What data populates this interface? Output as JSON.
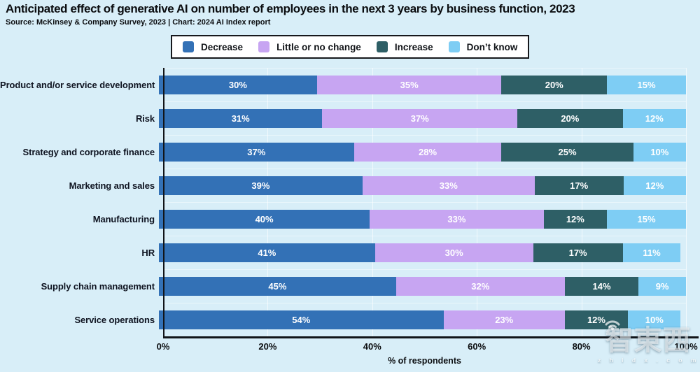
{
  "title": "Anticipated effect of generative AI on number of employees in the next 3 years by business function, 2023",
  "source": "Source: McKinsey & Company Survey, 2023 | Chart: 2024 AI Index report",
  "colors": {
    "background": "#D8EEF8",
    "axis": "#111418",
    "decrease": "#3371B6",
    "little_or_no_change": "#C7A5F2",
    "increase": "#2E5F66",
    "dont_know": "#7ECDF4"
  },
  "chart_data": {
    "type": "bar",
    "stacked": true,
    "orientation": "horizontal",
    "title": "Anticipated effect of generative AI on number of employees in the next 3 years by business function, 2023",
    "categories": [
      "Product and/or service development",
      "Risk",
      "Strategy and corporate finance",
      "Marketing and sales",
      "Manufacturing",
      "HR",
      "Supply chain management",
      "Service operations"
    ],
    "series": [
      {
        "name": "Decrease",
        "color": "#3371B6",
        "values": [
          30,
          31,
          37,
          39,
          40,
          41,
          45,
          54
        ]
      },
      {
        "name": "Little or no change",
        "color": "#C7A5F2",
        "values": [
          35,
          37,
          28,
          33,
          33,
          30,
          32,
          23
        ]
      },
      {
        "name": "Increase",
        "color": "#2E5F66",
        "values": [
          20,
          20,
          25,
          17,
          12,
          17,
          14,
          12
        ]
      },
      {
        "name": "Don’t know",
        "color": "#7ECDF4",
        "values": [
          15,
          12,
          10,
          12,
          15,
          11,
          9,
          10
        ]
      }
    ],
    "value_suffix": "%",
    "xlabel": "% of respondents",
    "x_ticks": [
      "0%",
      "20%",
      "40%",
      "60%",
      "80%",
      "100%"
    ],
    "xlim": [
      0,
      100
    ],
    "legend_position": "top",
    "grid": "vertical"
  },
  "watermark": {
    "text": "智東西",
    "subtext": "z h i d x . c o m"
  }
}
